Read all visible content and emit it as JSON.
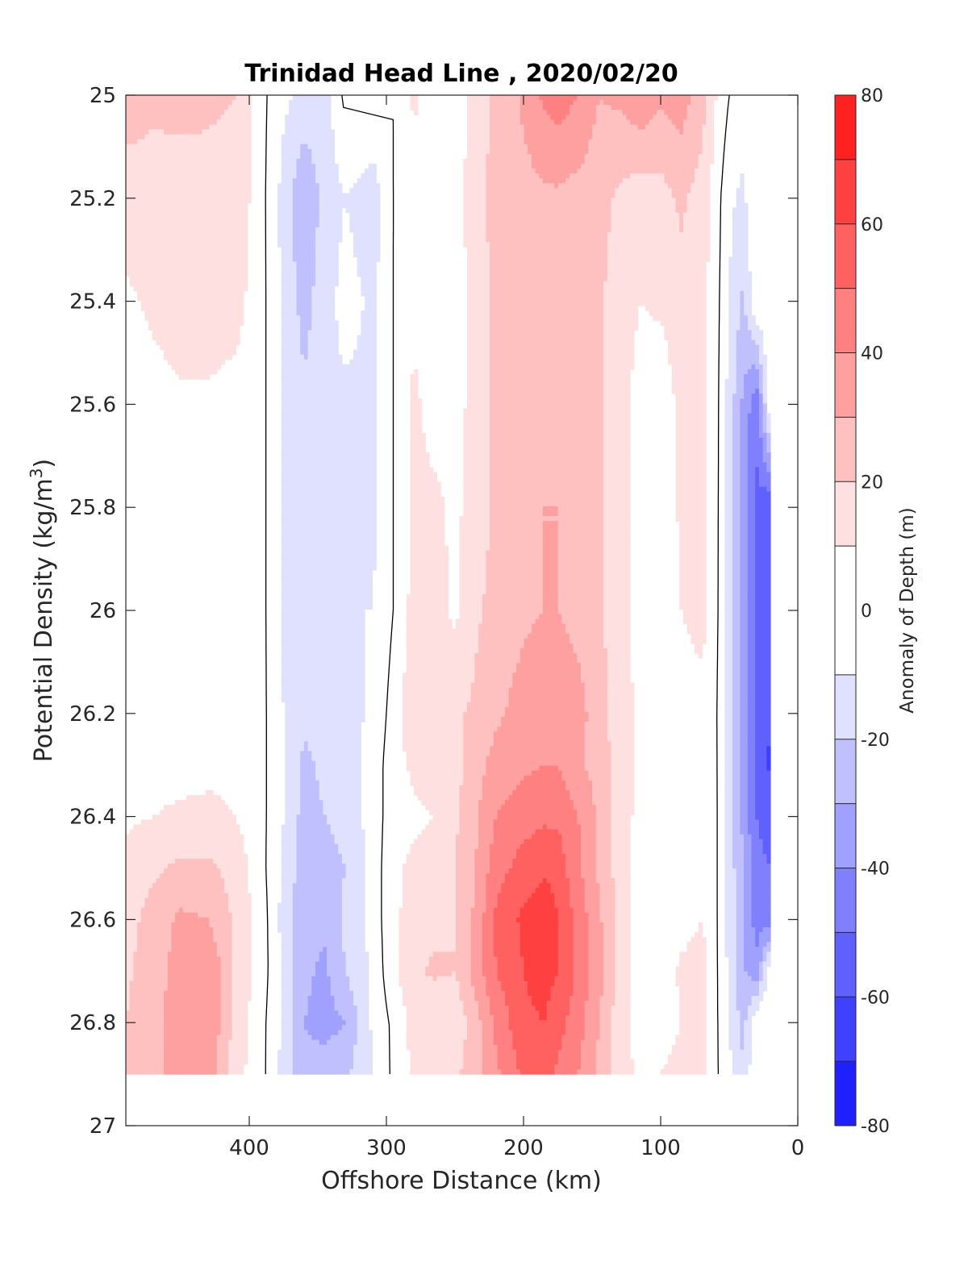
{
  "chart_data": {
    "type": "heatmap",
    "subtype": "filled-contour",
    "title": "Trinidad Head Line , 2020/02/20",
    "xlabel": "Offshore Distance (km)",
    "ylabel": "Potential Density (kg/m",
    "ylabel_superscript": "3",
    "ylabel_suffix": ")",
    "xlim": [
      490,
      0
    ],
    "ylim": [
      25,
      27
    ],
    "x_direction": "reversed",
    "y_direction": "reversed",
    "x_ticks": [
      400,
      300,
      200,
      100,
      0
    ],
    "x_tick_labels": [
      "400",
      "300",
      "200",
      "100",
      "0"
    ],
    "y_ticks": [
      25,
      25.2,
      25.4,
      25.6,
      25.8,
      26,
      26.2,
      26.4,
      26.6,
      26.8,
      27
    ],
    "y_tick_labels": [
      "25",
      "25.2",
      "25.4",
      "25.6",
      "25.8",
      "26",
      "26.2",
      "26.4",
      "26.6",
      "26.8",
      "27"
    ],
    "grid": false,
    "colorbar": {
      "label": "Anomaly of Depth (m)",
      "levels": [
        -80,
        -70,
        -60,
        -50,
        -40,
        -30,
        -20,
        -10,
        10,
        20,
        30,
        40,
        50,
        60,
        70,
        80
      ],
      "tick_values": [
        80,
        60,
        40,
        20,
        0,
        -20,
        -40,
        -60,
        -80
      ],
      "tick_labels": [
        "80",
        "60",
        "40",
        "20",
        "0",
        "-20",
        "-40",
        "-60",
        "-80"
      ],
      "colors": [
        "#0000ff",
        "#2020ff",
        "#4040ff",
        "#6060ff",
        "#8080ff",
        "#a0a0ff",
        "#c0c0ff",
        "#e0e0ff",
        "#ffffff",
        "#ffe0e0",
        "#ffc0c0",
        "#ffa0a0",
        "#ff8080",
        "#ff6060",
        "#ff4040",
        "#ff2020",
        "#ff0000"
      ]
    },
    "anomaly_field": {
      "distances_km": [
        490,
        470,
        450,
        430,
        410,
        390,
        375,
        360,
        345,
        330,
        310,
        295,
        280,
        265,
        250,
        235,
        220,
        200,
        185,
        175,
        160,
        145,
        130,
        115,
        100,
        85,
        70,
        60,
        50,
        40,
        30,
        20
      ],
      "densities": [
        25.0,
        25.2,
        25.4,
        25.6,
        25.8,
        26.0,
        26.2,
        26.3,
        26.4,
        26.5,
        26.6,
        26.7,
        26.8,
        26.9
      ],
      "values_m": [
        [
          24,
          22,
          22,
          21,
          20,
          2,
          -8,
          -12,
          -15,
          3,
          0,
          0,
          12,
          5,
          3,
          14,
          22,
          32,
          42,
          45,
          40,
          30,
          32,
          38,
          32,
          35,
          25,
          10,
          0,
          -5,
          0,
          0
        ],
        [
          16,
          16,
          17,
          18,
          18,
          2,
          -14,
          -30,
          -16,
          -10,
          -16,
          0,
          4,
          2,
          6,
          16,
          24,
          26,
          28,
          28,
          26,
          24,
          18,
          14,
          16,
          22,
          15,
          5,
          -8,
          -12,
          0,
          0
        ],
        [
          8,
          12,
          16,
          16,
          14,
          2,
          -12,
          -24,
          -14,
          -6,
          -12,
          0,
          8,
          2,
          4,
          14,
          22,
          26,
          28,
          28,
          26,
          22,
          14,
          10,
          12,
          16,
          14,
          4,
          -10,
          -22,
          0,
          0
        ],
        [
          4,
          6,
          8,
          8,
          6,
          2,
          -12,
          -18,
          -12,
          -12,
          -12,
          0,
          12,
          6,
          6,
          14,
          22,
          26,
          28,
          28,
          26,
          22,
          14,
          6,
          2,
          14,
          14,
          4,
          -14,
          -32,
          -48,
          0
        ],
        [
          4,
          4,
          4,
          4,
          4,
          2,
          -12,
          -18,
          -14,
          -12,
          -12,
          0,
          12,
          12,
          8,
          14,
          22,
          26,
          30,
          30,
          26,
          22,
          14,
          6,
          2,
          12,
          14,
          4,
          -16,
          -36,
          -52,
          -60
        ],
        [
          4,
          4,
          4,
          4,
          4,
          2,
          -12,
          -16,
          -12,
          -10,
          -10,
          0,
          14,
          14,
          8,
          18,
          24,
          28,
          30,
          30,
          26,
          22,
          14,
          6,
          4,
          10,
          14,
          4,
          -18,
          -36,
          -52,
          -56
        ],
        [
          6,
          6,
          6,
          6,
          6,
          2,
          -10,
          -18,
          -16,
          -14,
          -8,
          4,
          18,
          18,
          18,
          22,
          28,
          34,
          38,
          40,
          34,
          24,
          14,
          8,
          4,
          4,
          6,
          2,
          -18,
          -36,
          -52,
          -60
        ],
        [
          6,
          6,
          6,
          8,
          8,
          2,
          -10,
          -22,
          -18,
          -14,
          -6,
          6,
          12,
          14,
          16,
          26,
          34,
          38,
          40,
          40,
          32,
          26,
          16,
          8,
          2,
          2,
          2,
          2,
          -16,
          -34,
          -52,
          -62
        ],
        [
          8,
          10,
          12,
          12,
          10,
          2,
          -10,
          -24,
          -20,
          -16,
          -6,
          6,
          8,
          10,
          18,
          28,
          40,
          46,
          48,
          48,
          40,
          28,
          16,
          6,
          2,
          2,
          4,
          2,
          -14,
          -32,
          -50,
          -54
        ],
        [
          14,
          18,
          22,
          22,
          16,
          2,
          -12,
          -26,
          -24,
          -20,
          -6,
          8,
          12,
          14,
          20,
          30,
          46,
          54,
          58,
          56,
          42,
          28,
          16,
          6,
          2,
          2,
          6,
          2,
          -14,
          -30,
          -48,
          -50
        ],
        [
          16,
          24,
          32,
          30,
          18,
          4,
          -14,
          -28,
          -28,
          -18,
          -6,
          8,
          14,
          16,
          20,
          32,
          52,
          62,
          68,
          60,
          46,
          32,
          16,
          6,
          4,
          6,
          10,
          2,
          -14,
          -30,
          -44,
          -46
        ],
        [
          18,
          26,
          34,
          40,
          18,
          4,
          -12,
          -28,
          -32,
          -20,
          -8,
          8,
          18,
          22,
          20,
          34,
          50,
          60,
          64,
          60,
          48,
          34,
          16,
          6,
          4,
          12,
          14,
          2,
          -12,
          -28,
          -38,
          0
        ],
        [
          20,
          28,
          34,
          40,
          16,
          2,
          -12,
          -30,
          -34,
          -30,
          -8,
          2,
          14,
          10,
          12,
          26,
          42,
          58,
          60,
          54,
          44,
          30,
          14,
          6,
          4,
          10,
          12,
          2,
          -10,
          -24,
          0,
          0
        ],
        [
          20,
          28,
          34,
          36,
          14,
          2,
          -14,
          -28,
          -24,
          -22,
          -10,
          2,
          12,
          16,
          18,
          26,
          38,
          52,
          56,
          48,
          40,
          28,
          14,
          8,
          10,
          14,
          14,
          2,
          -8,
          -18,
          0,
          0
        ]
      ]
    }
  }
}
